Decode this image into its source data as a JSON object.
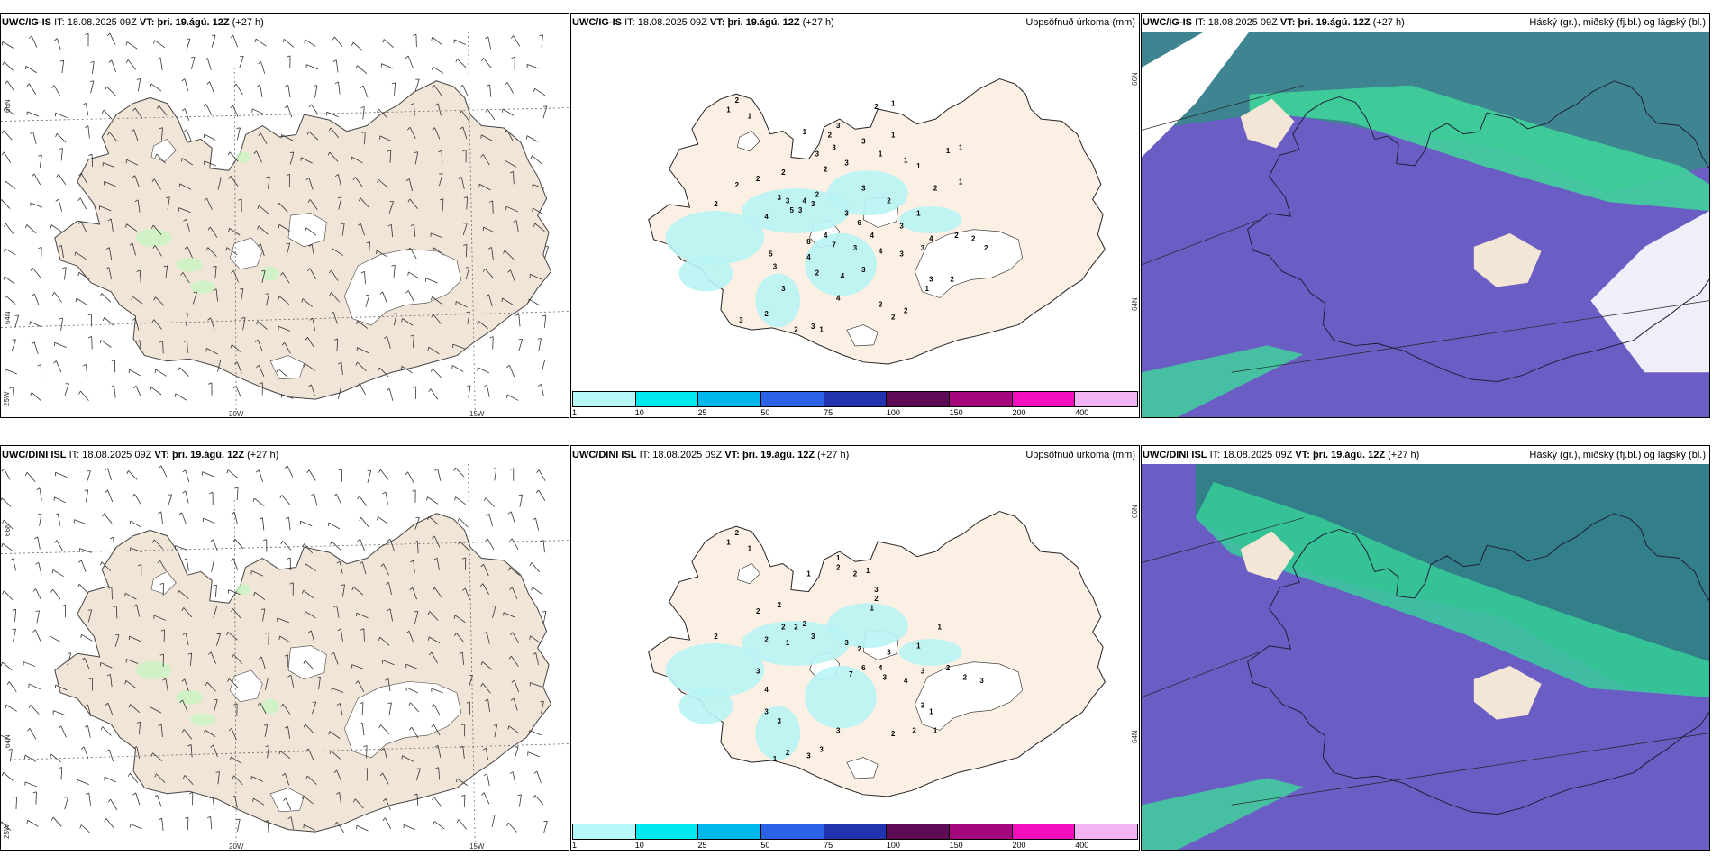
{
  "rows": [
    {
      "model": "UWC/IG-IS",
      "it_label": "IT:",
      "it_value": "18.08.2025 09Z",
      "vt_label": "VT:",
      "vt_value": "þri. 19.ágú. 12Z",
      "lead": "(+27 h)",
      "precip_title": "Uppsöfnuð úrkoma (mm)",
      "cloud_title": "Háský (gr.), miðský (fj.bl.) og lágský (bl.)"
    },
    {
      "model": "UWC/DINI ISL",
      "it_label": "IT:",
      "it_value": "18.08.2025 09Z",
      "vt_label": "VT:",
      "vt_value": "þri. 19.ágú. 12Z",
      "lead": "(+27 h)",
      "precip_title": "Uppsöfnuð úrkoma (mm)",
      "cloud_title": "Háský (gr.), miðský (fj.bl.) og lágský (bl.)"
    }
  ],
  "axis_labels": {
    "lat_66": "66N",
    "lat_64": "64N",
    "lon_25": "25W",
    "lon_20": "20W",
    "lon_15": "15W"
  },
  "colorbar": {
    "colors": [
      "#b6f7f7",
      "#00e8ee",
      "#00b8ee",
      "#2a63e6",
      "#2233b0",
      "#5e0a55",
      "#a3087f",
      "#f20fc0",
      "#f2b4f2"
    ],
    "labels": [
      "1",
      "10",
      "25",
      "50",
      "75",
      "100",
      "150",
      "200",
      "400"
    ]
  },
  "precip_points_top": [
    [
      "2",
      0.26,
      0.17
    ],
    [
      "1",
      0.24,
      0.2
    ],
    [
      "1",
      0.29,
      0.22
    ],
    [
      "1",
      0.63,
      0.18
    ],
    [
      "2",
      0.59,
      0.19
    ],
    [
      "3",
      0.5,
      0.25
    ],
    [
      "1",
      0.42,
      0.27
    ],
    [
      "2",
      0.48,
      0.28
    ],
    [
      "3",
      0.56,
      0.3
    ],
    [
      "1",
      0.63,
      0.28
    ],
    [
      "3",
      0.49,
      0.32
    ],
    [
      "3",
      0.45,
      0.34
    ],
    [
      "1",
      0.6,
      0.34
    ],
    [
      "3",
      0.52,
      0.37
    ],
    [
      "1",
      0.66,
      0.36
    ],
    [
      "1",
      0.69,
      0.38
    ],
    [
      "1",
      0.76,
      0.33
    ],
    [
      "1",
      0.79,
      0.32
    ],
    [
      "2",
      0.47,
      0.39
    ],
    [
      "2",
      0.37,
      0.4
    ],
    [
      "2",
      0.31,
      0.42
    ],
    [
      "2",
      0.26,
      0.44
    ],
    [
      "3",
      0.36,
      0.48
    ],
    [
      "3",
      0.38,
      0.49
    ],
    [
      "4",
      0.42,
      0.49
    ],
    [
      "3",
      0.44,
      0.5
    ],
    [
      "2",
      0.45,
      0.47
    ],
    [
      "5",
      0.39,
      0.52
    ],
    [
      "3",
      0.41,
      0.52
    ],
    [
      "4",
      0.33,
      0.54
    ],
    [
      "2",
      0.21,
      0.5
    ],
    [
      "3",
      0.52,
      0.53
    ],
    [
      "6",
      0.55,
      0.56
    ],
    [
      "4",
      0.58,
      0.6
    ],
    [
      "8",
      0.43,
      0.62
    ],
    [
      "4",
      0.47,
      0.6
    ],
    [
      "7",
      0.49,
      0.63
    ],
    [
      "4",
      0.6,
      0.65
    ],
    [
      "3",
      0.54,
      0.64
    ],
    [
      "5",
      0.34,
      0.66
    ],
    [
      "3",
      0.35,
      0.7
    ],
    [
      "4",
      0.43,
      0.67
    ],
    [
      "2",
      0.45,
      0.72
    ],
    [
      "4",
      0.51,
      0.73
    ],
    [
      "3",
      0.56,
      0.71
    ],
    [
      "3",
      0.65,
      0.66
    ],
    [
      "3",
      0.7,
      0.64
    ],
    [
      "4",
      0.72,
      0.61
    ],
    [
      "2",
      0.78,
      0.6
    ],
    [
      "2",
      0.82,
      0.61
    ],
    [
      "2",
      0.85,
      0.64
    ],
    [
      "3",
      0.72,
      0.74
    ],
    [
      "1",
      0.71,
      0.77
    ],
    [
      "2",
      0.77,
      0.74
    ],
    [
      "4",
      0.5,
      0.8
    ],
    [
      "2",
      0.6,
      0.82
    ],
    [
      "2",
      0.63,
      0.86
    ],
    [
      "2",
      0.66,
      0.84
    ],
    [
      "3",
      0.37,
      0.77
    ],
    [
      "2",
      0.33,
      0.85
    ],
    [
      "3",
      0.27,
      0.87
    ],
    [
      "3",
      0.44,
      0.89
    ],
    [
      "2",
      0.4,
      0.9
    ],
    [
      "1",
      0.46,
      0.9
    ],
    [
      "2",
      0.73,
      0.45
    ],
    [
      "1",
      0.79,
      0.43
    ],
    [
      "1",
      0.69,
      0.53
    ],
    [
      "3",
      0.56,
      0.45
    ],
    [
      "2",
      0.62,
      0.49
    ],
    [
      "3",
      0.65,
      0.57
    ]
  ],
  "precip_points_bottom": [
    [
      "2",
      0.26,
      0.17
    ],
    [
      "1",
      0.24,
      0.2
    ],
    [
      "1",
      0.29,
      0.22
    ],
    [
      "1",
      0.5,
      0.25
    ],
    [
      "2",
      0.5,
      0.28
    ],
    [
      "1",
      0.43,
      0.3
    ],
    [
      "2",
      0.54,
      0.3
    ],
    [
      "1",
      0.57,
      0.29
    ],
    [
      "3",
      0.59,
      0.35
    ],
    [
      "2",
      0.59,
      0.38
    ],
    [
      "1",
      0.58,
      0.41
    ],
    [
      "2",
      0.36,
      0.4
    ],
    [
      "2",
      0.31,
      0.42
    ],
    [
      "2",
      0.37,
      0.47
    ],
    [
      "2",
      0.4,
      0.47
    ],
    [
      "2",
      0.42,
      0.46
    ],
    [
      "3",
      0.44,
      0.5
    ],
    [
      "2",
      0.33,
      0.51
    ],
    [
      "1",
      0.38,
      0.52
    ],
    [
      "3",
      0.52,
      0.52
    ],
    [
      "2",
      0.55,
      0.54
    ],
    [
      "6",
      0.56,
      0.6
    ],
    [
      "7",
      0.53,
      0.62
    ],
    [
      "4",
      0.6,
      0.6
    ],
    [
      "3",
      0.61,
      0.63
    ],
    [
      "4",
      0.66,
      0.64
    ],
    [
      "3",
      0.7,
      0.61
    ],
    [
      "2",
      0.76,
      0.6
    ],
    [
      "2",
      0.8,
      0.63
    ],
    [
      "3",
      0.84,
      0.64
    ],
    [
      "3",
      0.7,
      0.72
    ],
    [
      "1",
      0.72,
      0.74
    ],
    [
      "2",
      0.68,
      0.8
    ],
    [
      "1",
      0.73,
      0.8
    ],
    [
      "3",
      0.5,
      0.8
    ],
    [
      "2",
      0.63,
      0.81
    ],
    [
      "3",
      0.46,
      0.86
    ],
    [
      "3",
      0.43,
      0.88
    ],
    [
      "2",
      0.38,
      0.87
    ],
    [
      "1",
      0.35,
      0.89
    ],
    [
      "3",
      0.36,
      0.77
    ],
    [
      "3",
      0.33,
      0.74
    ],
    [
      "4",
      0.33,
      0.67
    ],
    [
      "3",
      0.31,
      0.61
    ],
    [
      "2",
      0.21,
      0.5
    ],
    [
      "1",
      0.69,
      0.53
    ],
    [
      "1",
      0.74,
      0.47
    ],
    [
      "3",
      0.62,
      0.55
    ]
  ]
}
